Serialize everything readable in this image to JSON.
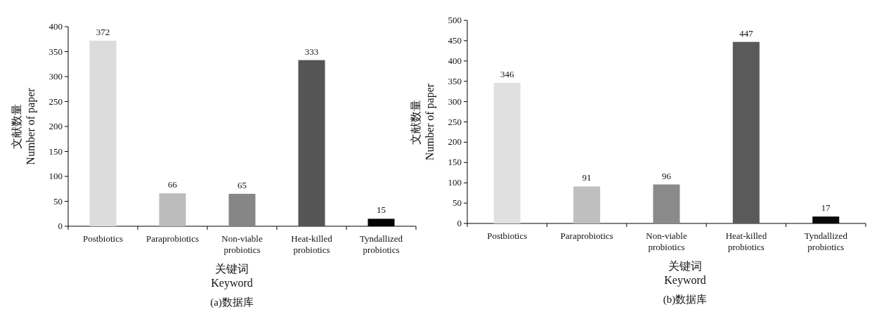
{
  "chart_data": [
    {
      "type": "bar",
      "categories": [
        "Postbiotics",
        "Paraprobiotics",
        "Non-viable\nprobiotics",
        "Heat-killed\nprobiotics",
        "Tyndallized\nprobiotics"
      ],
      "values": [
        372,
        66,
        65,
        333,
        15
      ],
      "colors": [
        "#dcdcdc",
        "#bcbcbc",
        "#868686",
        "#555555",
        "#050505"
      ],
      "ylim": [
        0,
        400
      ],
      "yticks": [
        0,
        50,
        100,
        150,
        200,
        250,
        300,
        350,
        400
      ],
      "ylabel": "文献数量\nNumber of paper",
      "xlabel": "关键词\nKeyword",
      "data_labels": true,
      "annotations": [
        "(a)数据库"
      ]
    },
    {
      "type": "bar",
      "categories": [
        "Postbiotics",
        "Paraprobiotics",
        "Non-viable\nprobiotics",
        "Heat-killed\nprobiotics",
        "Tyndallized\nprobiotics"
      ],
      "values": [
        346,
        91,
        96,
        447,
        17
      ],
      "colors": [
        "#e0e0e0",
        "#bfbfbf",
        "#8a8a8a",
        "#5a5a5a",
        "#0a0a0a"
      ],
      "ylim": [
        0,
        500
      ],
      "yticks": [
        0,
        50,
        100,
        150,
        200,
        250,
        300,
        350,
        400,
        450,
        500
      ],
      "ylabel": "文献数量\nNumber of paper",
      "xlabel": "关键词\nKeyword",
      "data_labels": true,
      "annotations": [
        "(b)数据库"
      ]
    }
  ]
}
